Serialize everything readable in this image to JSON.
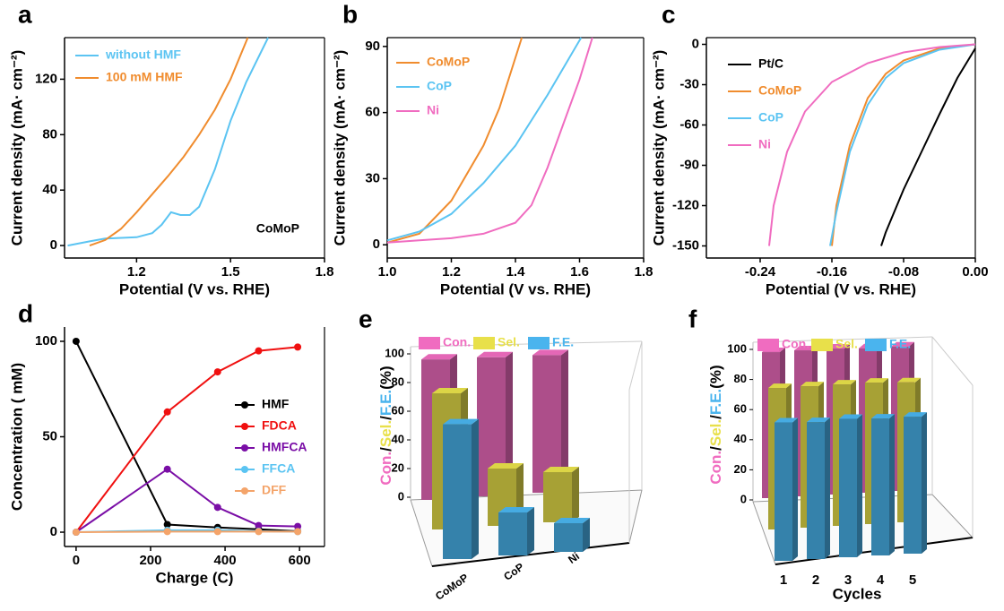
{
  "chart_data": [
    {
      "panel": "a",
      "type": "line",
      "xlabel": "Potential (V vs. RHE)",
      "ylabel": "Current density (mA· cm⁻²)",
      "annotation": "CoMoP",
      "xlim": [
        0.97,
        1.8
      ],
      "ylim": [
        -9,
        150
      ],
      "xticks": [
        1.2,
        1.5,
        1.8
      ],
      "yticks": [
        0,
        40,
        80,
        120
      ],
      "series": [
        {
          "name": "without HMF",
          "color": "#5bc4f2",
          "x": [
            0.98,
            1.05,
            1.1,
            1.2,
            1.25,
            1.28,
            1.31,
            1.34,
            1.37,
            1.4,
            1.45,
            1.5,
            1.55,
            1.62
          ],
          "values": [
            0,
            3,
            5,
            6,
            9,
            15,
            24,
            22,
            22,
            28,
            55,
            90,
            118,
            150
          ]
        },
        {
          "name": "100 mM HMF",
          "color": "#f08c2e",
          "x": [
            1.05,
            1.1,
            1.15,
            1.2,
            1.25,
            1.3,
            1.35,
            1.4,
            1.45,
            1.5,
            1.555
          ],
          "values": [
            0,
            4,
            12,
            24,
            37,
            50,
            64,
            80,
            98,
            120,
            150
          ]
        }
      ]
    },
    {
      "panel": "b",
      "type": "line",
      "xlabel": "Potential (V vs. RHE)",
      "ylabel": "Current density (mA· cm⁻²)",
      "xlim": [
        1.0,
        1.8
      ],
      "ylim": [
        -6,
        94
      ],
      "xticks": [
        {
          "value": 1.0,
          "label": "1.0"
        },
        1.2,
        1.4,
        1.6,
        1.8
      ],
      "yticks": [
        0,
        30,
        60,
        90
      ],
      "series": [
        {
          "name": "CoMoP",
          "color": "#f08c2e",
          "x": [
            1.0,
            1.1,
            1.2,
            1.3,
            1.35,
            1.42
          ],
          "values": [
            1,
            5,
            20,
            45,
            62,
            94
          ]
        },
        {
          "name": "CoP",
          "color": "#5bc4f2",
          "x": [
            1.0,
            1.1,
            1.2,
            1.3,
            1.4,
            1.5,
            1.605
          ],
          "values": [
            2,
            6,
            14,
            28,
            45,
            68,
            94
          ]
        },
        {
          "name": "Ni",
          "color": "#f06cc0",
          "x": [
            1.0,
            1.1,
            1.2,
            1.3,
            1.4,
            1.45,
            1.5,
            1.55,
            1.6,
            1.64
          ],
          "values": [
            1,
            2,
            3,
            5,
            10,
            18,
            35,
            55,
            75,
            94
          ]
        }
      ]
    },
    {
      "panel": "c",
      "type": "line",
      "xlabel": "Potential (V vs. RHE)",
      "ylabel": "Current density (mA· cm⁻²)",
      "xlim": [
        -0.3,
        0
      ],
      "ylim": [
        -159,
        5
      ],
      "xticks": [
        -0.24,
        -0.16,
        -0.08,
        {
          "value": 0,
          "label": "0.00"
        }
      ],
      "yticks": [
        0,
        -30,
        -60,
        -90,
        -120,
        -150
      ],
      "series": [
        {
          "name": "Pt/C",
          "color": "#000000",
          "x": [
            0,
            -0.02,
            -0.04,
            -0.06,
            -0.08,
            -0.1,
            -0.105
          ],
          "values": [
            -3,
            -25,
            -52,
            -80,
            -108,
            -140,
            -150
          ]
        },
        {
          "name": "CoMoP",
          "color": "#f08c2e",
          "x": [
            0,
            -0.04,
            -0.08,
            -0.1,
            -0.12,
            -0.14,
            -0.155,
            -0.16
          ],
          "values": [
            0,
            -3,
            -12,
            -22,
            -40,
            -75,
            -120,
            -150
          ]
        },
        {
          "name": "CoP",
          "color": "#5bc4f2",
          "x": [
            0,
            -0.04,
            -0.08,
            -0.1,
            -0.12,
            -0.14,
            -0.155,
            -0.162
          ],
          "values": [
            0,
            -4,
            -14,
            -25,
            -45,
            -80,
            -125,
            -150
          ]
        },
        {
          "name": "Ni",
          "color": "#f06cc0",
          "x": [
            0,
            -0.04,
            -0.08,
            -0.12,
            -0.16,
            -0.19,
            -0.21,
            -0.225,
            -0.23
          ],
          "values": [
            0,
            -2,
            -6,
            -14,
            -28,
            -50,
            -80,
            -120,
            -150
          ]
        }
      ]
    },
    {
      "panel": "d",
      "type": "line",
      "markers": true,
      "xlabel": "Charge (C)",
      "ylabel": "Concentration ( mM)",
      "xlim": [
        -31,
        667
      ],
      "ylim": [
        -7.5,
        107.5
      ],
      "xticks": [
        0,
        200,
        400,
        600
      ],
      "yticks": [
        0,
        50,
        100
      ],
      "series": [
        {
          "name": "HMF",
          "color": "#000000",
          "x": [
            0,
            245,
            380,
            490,
            595
          ],
          "values": [
            100,
            4,
            2.5,
            1.5,
            0.5
          ]
        },
        {
          "name": "FDCA",
          "color": "#f01010",
          "x": [
            0,
            245,
            380,
            490,
            595
          ],
          "values": [
            0,
            63,
            84,
            95,
            97
          ]
        },
        {
          "name": "HMFCA",
          "color": "#7a0ea6",
          "x": [
            0,
            245,
            380,
            490,
            595
          ],
          "values": [
            0,
            33,
            13,
            3.5,
            3
          ]
        },
        {
          "name": "FFCA",
          "color": "#5bc4f2",
          "x": [
            0,
            245,
            380,
            490,
            595
          ],
          "values": [
            0,
            1,
            1,
            0.5,
            0.3
          ]
        },
        {
          "name": "DFF",
          "color": "#f4a46a",
          "x": [
            0,
            245,
            380,
            490,
            595
          ],
          "values": [
            0,
            0.3,
            0.3,
            0.3,
            0.3
          ]
        }
      ]
    },
    {
      "panel": "e",
      "type": "bar3d",
      "ylim": [
        0,
        100
      ],
      "yticks": [
        0,
        20,
        40,
        60,
        80,
        100
      ],
      "ylabel_parts": [
        {
          "text": "Con.",
          "color": "#f06cc0"
        },
        {
          "text": "/",
          "color": "#000000"
        },
        {
          "text": "Sel.",
          "color": "#e8e04a"
        },
        {
          "text": "/",
          "color": "#000000"
        },
        {
          "text": "F.E.",
          "color": "#4ab4ee"
        },
        {
          "text": "(%)",
          "color": "#000000"
        }
      ],
      "categories": [
        "CoMoP",
        "CoP",
        "Ni"
      ],
      "series": [
        {
          "name": "Con.",
          "color": "#f06cc0",
          "values": [
            98,
            97,
            96
          ]
        },
        {
          "name": "Sel.",
          "color": "#e8e04a",
          "values": [
            95,
            40,
            35
          ]
        },
        {
          "name": "F.E.",
          "color": "#4ab4ee",
          "values": [
            94,
            30,
            20
          ]
        }
      ]
    },
    {
      "panel": "f",
      "type": "bar3d",
      "xlabel": "Cycles",
      "ylim": [
        0,
        100
      ],
      "yticks": [
        0,
        20,
        40,
        60,
        80,
        100
      ],
      "ylabel_parts": [
        {
          "text": "Con.",
          "color": "#f06cc0"
        },
        {
          "text": "/",
          "color": "#000000"
        },
        {
          "text": "Sel.",
          "color": "#e8e04a"
        },
        {
          "text": "/",
          "color": "#000000"
        },
        {
          "text": "F.E.",
          "color": "#4ab4ee"
        },
        {
          "text": "(%)",
          "color": "#000000"
        }
      ],
      "categories": [
        "1",
        "2",
        "3",
        "4",
        "5"
      ],
      "series": [
        {
          "name": "Con.",
          "color": "#f06cc0",
          "values": [
            97,
            97,
            97,
            96,
            96
          ]
        },
        {
          "name": "Sel.",
          "color": "#e8e04a",
          "values": [
            94,
            94,
            94,
            94,
            93
          ]
        },
        {
          "name": "F.E.",
          "color": "#4ab4ee",
          "values": [
            92,
            91,
            92,
            91,
            91
          ]
        }
      ]
    }
  ]
}
